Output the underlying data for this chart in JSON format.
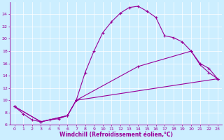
{
  "xlabel": "Windchill (Refroidissement éolien,°C)",
  "bg_color": "#cceeff",
  "line_color": "#990099",
  "grid_color": "#aaddcc",
  "xlim": [
    -0.5,
    23.5
  ],
  "ylim": [
    6,
    26
  ],
  "xticks": [
    0,
    1,
    2,
    3,
    4,
    5,
    6,
    7,
    8,
    9,
    10,
    11,
    12,
    13,
    14,
    15,
    16,
    17,
    18,
    19,
    20,
    21,
    22,
    23
  ],
  "yticks": [
    6,
    8,
    10,
    12,
    14,
    16,
    18,
    20,
    22,
    24
  ],
  "curve1_x": [
    0,
    1,
    2,
    3,
    4,
    5,
    6,
    7,
    8,
    9,
    10,
    11,
    12,
    13,
    14,
    15,
    16,
    17,
    18,
    19,
    20,
    21,
    22,
    23
  ],
  "curve1_y": [
    9.0,
    7.8,
    6.8,
    6.5,
    6.8,
    7.0,
    7.5,
    10.0,
    14.5,
    18.0,
    21.0,
    22.8,
    24.2,
    25.1,
    25.3,
    24.5,
    23.5,
    20.5,
    20.2,
    19.5,
    18.0,
    15.8,
    14.5,
    13.5
  ],
  "curve1_markers_x": [
    0,
    1,
    2,
    3,
    4,
    5,
    6,
    7,
    8,
    9,
    10,
    11,
    12,
    13,
    14,
    15,
    16,
    17,
    18,
    19,
    20,
    21,
    22,
    23
  ],
  "curve1_markers_y": [
    9.0,
    7.8,
    6.8,
    6.5,
    6.8,
    7.0,
    7.5,
    10.0,
    14.5,
    18.0,
    21.0,
    22.8,
    24.2,
    25.1,
    25.3,
    24.5,
    23.5,
    20.5,
    20.2,
    19.5,
    18.0,
    15.8,
    14.5,
    13.5
  ],
  "curve2_x": [
    0,
    3,
    6,
    7,
    14,
    20,
    21,
    22,
    23
  ],
  "curve2_y": [
    9.0,
    6.5,
    7.5,
    10.0,
    15.5,
    18.0,
    16.0,
    15.2,
    13.5
  ],
  "curve3_x": [
    0,
    3,
    6,
    7,
    23
  ],
  "curve3_y": [
    9.0,
    6.5,
    7.5,
    10.0,
    13.5
  ]
}
